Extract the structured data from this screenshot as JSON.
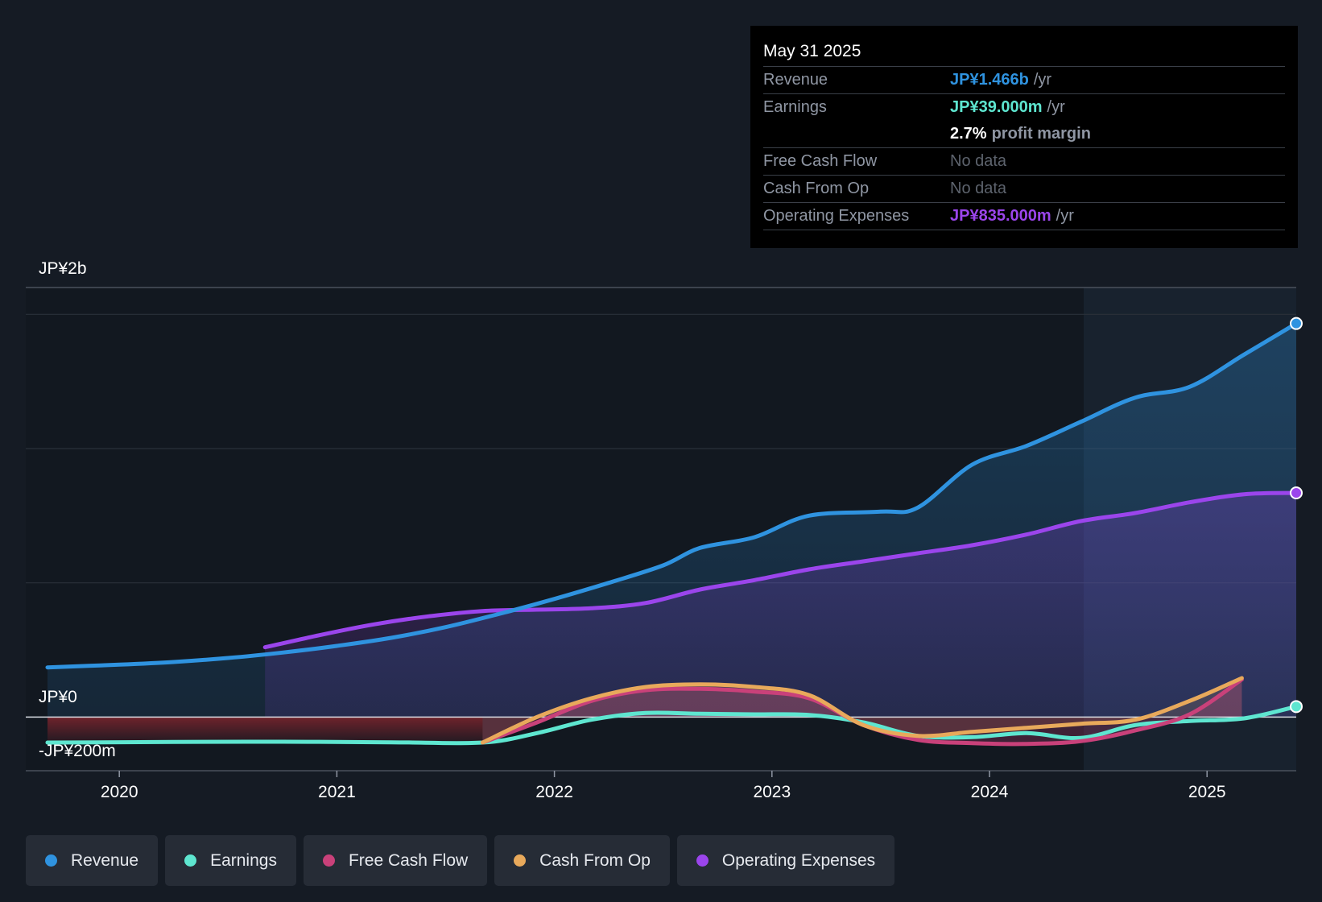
{
  "tooltip": {
    "date": "May 31 2025",
    "revenue_label": "Revenue",
    "revenue_value": "JP¥1.466b",
    "earnings_label": "Earnings",
    "earnings_value": "JP¥39.000m",
    "margin_value": "2.7%",
    "margin_label": "profit margin",
    "fcf_label": "Free Cash Flow",
    "fcf_value": "No data",
    "cfo_label": "Cash From Op",
    "cfo_value": "No data",
    "opex_label": "Operating Expenses",
    "opex_value": "JP¥835.000m",
    "unit": "/yr"
  },
  "legend": [
    {
      "label": "Revenue",
      "color": "#2f93e0"
    },
    {
      "label": "Earnings",
      "color": "#5ee6d0"
    },
    {
      "label": "Free Cash Flow",
      "color": "#c9417a"
    },
    {
      "label": "Cash From Op",
      "color": "#e8a95b"
    },
    {
      "label": "Operating Expenses",
      "color": "#9b45ec"
    }
  ],
  "chart_data": {
    "type": "line",
    "title": "",
    "y_tick_labels": [
      "JP¥2b",
      "JP¥0",
      "-JP¥200m"
    ],
    "x_tick_labels": [
      "2020",
      "2021",
      "2022",
      "2023",
      "2024",
      "2025"
    ],
    "ylim": [
      -200,
      1600
    ],
    "xlim": [
      2019.57,
      2025.41
    ],
    "units": "JP¥ millions",
    "forecast_region_start": 2024.4,
    "series": [
      {
        "name": "Revenue",
        "color": "#2f93e0",
        "x": [
          2019.67,
          2020.0,
          2020.25,
          2020.5,
          2020.75,
          2021.0,
          2021.25,
          2021.5,
          2021.75,
          2022.0,
          2022.25,
          2022.5,
          2022.67,
          2022.92,
          2023.17,
          2023.5,
          2023.67,
          2023.92,
          2024.17,
          2024.42,
          2024.67,
          2024.92,
          2025.17,
          2025.41
        ],
        "y": [
          185,
          195,
          205,
          220,
          240,
          265,
          295,
          335,
          385,
          440,
          500,
          565,
          630,
          670,
          750,
          765,
          780,
          940,
          1010,
          1100,
          1190,
          1230,
          1350,
          1466
        ]
      },
      {
        "name": "Earnings",
        "color": "#5ee6d0",
        "x": [
          2019.67,
          2020.25,
          2020.75,
          2021.25,
          2021.67,
          2021.92,
          2022.17,
          2022.42,
          2022.67,
          2022.92,
          2023.17,
          2023.42,
          2023.67,
          2023.92,
          2024.17,
          2024.42,
          2024.67,
          2024.92,
          2025.17,
          2025.41
        ],
        "y": [
          -95,
          -93,
          -92,
          -94,
          -95,
          -60,
          -10,
          15,
          12,
          10,
          8,
          -20,
          -70,
          -75,
          -60,
          -78,
          -30,
          -15,
          -5,
          39
        ]
      },
      {
        "name": "Free Cash Flow",
        "color": "#c9417a",
        "x": [
          2021.67,
          2021.92,
          2022.17,
          2022.42,
          2022.67,
          2022.92,
          2023.17,
          2023.42,
          2023.67,
          2023.92,
          2024.17,
          2024.42,
          2024.67,
          2024.92,
          2025.16
        ],
        "y": [
          -95,
          -20,
          60,
          100,
          105,
          95,
          70,
          -30,
          -85,
          -97,
          -100,
          -90,
          -50,
          10,
          140
        ]
      },
      {
        "name": "Cash From Op",
        "color": "#e8a95b",
        "x": [
          2021.67,
          2021.92,
          2022.17,
          2022.42,
          2022.67,
          2022.92,
          2023.17,
          2023.42,
          2023.67,
          2023.92,
          2024.17,
          2024.42,
          2024.67,
          2024.92,
          2025.16
        ],
        "y": [
          -95,
          0,
          70,
          112,
          122,
          112,
          82,
          -30,
          -70,
          -55,
          -40,
          -25,
          -10,
          60,
          145
        ]
      },
      {
        "name": "Operating Expenses",
        "color": "#9b45ec",
        "x": [
          2020.67,
          2020.92,
          2021.17,
          2021.42,
          2021.67,
          2021.92,
          2022.17,
          2022.42,
          2022.67,
          2022.92,
          2023.17,
          2023.42,
          2023.67,
          2023.92,
          2024.17,
          2024.42,
          2024.67,
          2024.92,
          2025.17,
          2025.41
        ],
        "y": [
          260,
          305,
          345,
          375,
          395,
          400,
          405,
          425,
          475,
          510,
          550,
          580,
          610,
          640,
          680,
          730,
          760,
          800,
          830,
          835
        ]
      }
    ]
  }
}
